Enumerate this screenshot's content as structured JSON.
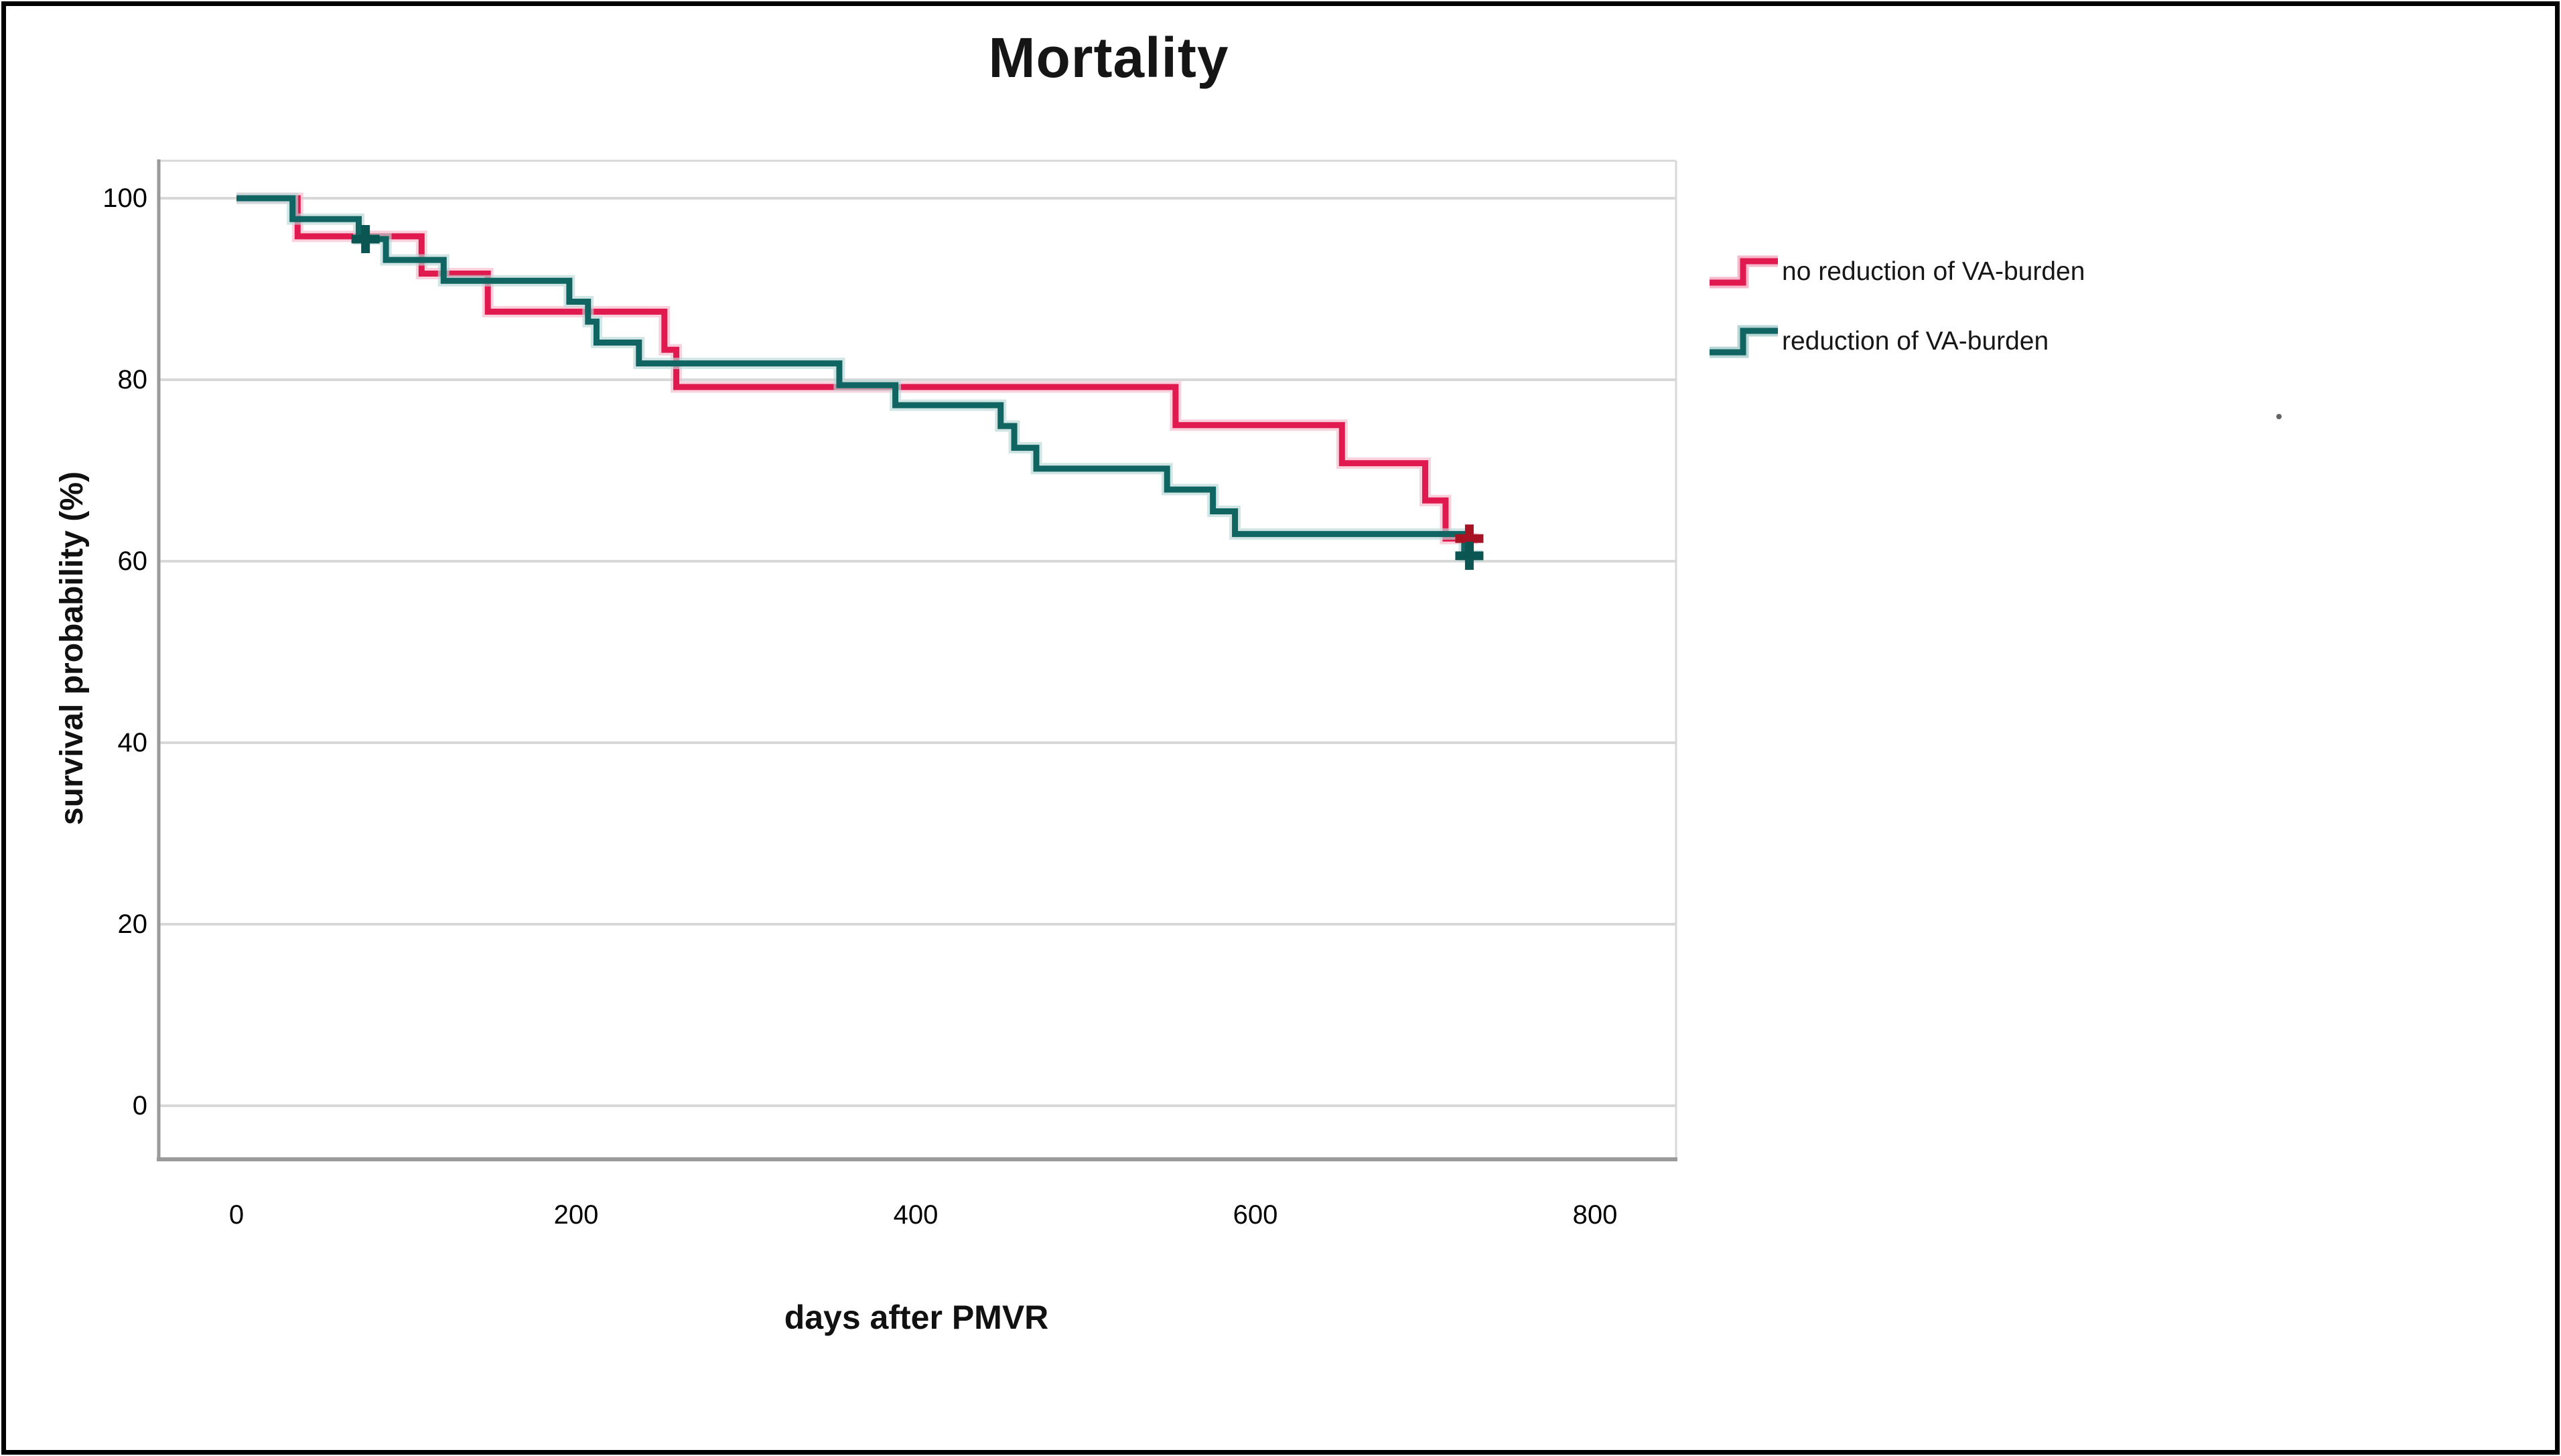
{
  "figure": {
    "title": "Mortality"
  },
  "axes": {
    "x": {
      "label": "days after PMVR"
    },
    "y": {
      "label": "survival probability (%)"
    }
  },
  "legend": {
    "items": [
      {
        "label": "no reduction of VA-burden",
        "color": "#e01a4e",
        "halo": "#f6b9cb"
      },
      {
        "label": "reduction of VA-burden",
        "color": "#106562",
        "halo": "#b8d7d6"
      }
    ]
  },
  "chart_data": {
    "type": "line",
    "subtype": "kaplan_meier_step",
    "title": "Mortality",
    "xlabel": "days after PMVR",
    "ylabel": "survival probability (%)",
    "xlim": [
      -46,
      848
    ],
    "ylim": [
      -6,
      104
    ],
    "x_ticks": [
      0,
      200,
      400,
      600,
      800
    ],
    "y_ticks": [
      100,
      80,
      60,
      40,
      20,
      0
    ],
    "grid": "horizontal-light-gray",
    "legend_position": "right-outside",
    "colors": {
      "gridline": "#d8d8d8",
      "axis": "#9a9a9a",
      "text": "#000000"
    },
    "series": [
      {
        "name": "no reduction of VA-burden",
        "color": "#e01a4e",
        "halo": "#f6b9cb",
        "censor_color": "#a81324",
        "points": [
          [
            0,
            100
          ],
          [
            36,
            95.8
          ],
          [
            109,
            91.7
          ],
          [
            148,
            87.5
          ],
          [
            252,
            83.3
          ],
          [
            259,
            79.2
          ],
          [
            553,
            75.0
          ],
          [
            651,
            70.8
          ],
          [
            700,
            66.7
          ],
          [
            712,
            62.5
          ],
          [
            731,
            62.5
          ]
        ],
        "censored": [
          [
            726,
            62.5
          ]
        ]
      },
      {
        "name": "reduction of VA-burden",
        "color": "#106562",
        "halo": "#b8d7d6",
        "censor_color": "#0b5553",
        "points": [
          [
            0,
            100
          ],
          [
            33,
            97.7
          ],
          [
            72,
            95.5
          ],
          [
            88,
            93.2
          ],
          [
            122,
            90.9
          ],
          [
            196,
            88.6
          ],
          [
            207,
            86.4
          ],
          [
            212,
            84.1
          ],
          [
            237,
            81.8
          ],
          [
            355,
            79.4
          ],
          [
            388,
            77.2
          ],
          [
            450,
            74.9
          ],
          [
            458,
            72.5
          ],
          [
            471,
            70.2
          ],
          [
            548,
            67.9
          ],
          [
            575,
            65.5
          ],
          [
            588,
            63.0
          ],
          [
            723,
            60.6
          ],
          [
            734,
            60.6
          ]
        ],
        "censored": [
          [
            76,
            95.5
          ],
          [
            726,
            60.6
          ]
        ]
      }
    ]
  }
}
